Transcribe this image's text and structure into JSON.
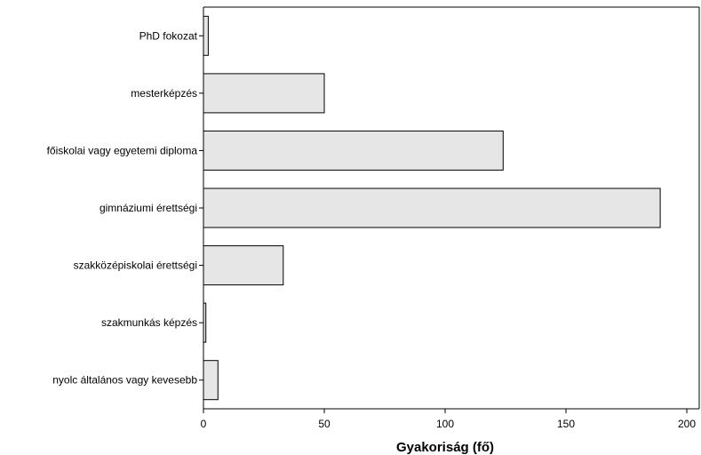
{
  "chart_data": {
    "type": "bar",
    "orientation": "horizontal",
    "categories": [
      "PhD fokozat",
      "mesterképzés",
      "főiskolai vagy egyetemi diploma",
      "gimnáziumi érettségi",
      "szakközépiskolai érettségi",
      "szakmunkás képzés",
      "nyolc általános vagy kevesebb"
    ],
    "values": [
      2,
      50,
      124,
      189,
      33,
      1,
      6
    ],
    "xlabel": "Gyakoriság (fő)",
    "ylabel": "",
    "xlim": [
      0,
      205
    ],
    "xticks": [
      0,
      50,
      100,
      150,
      200
    ],
    "grid": false,
    "legend": "none",
    "colors": {
      "bar_fill": "#e6e6e6",
      "bar_stroke": "#000000",
      "axis": "#000000"
    }
  }
}
